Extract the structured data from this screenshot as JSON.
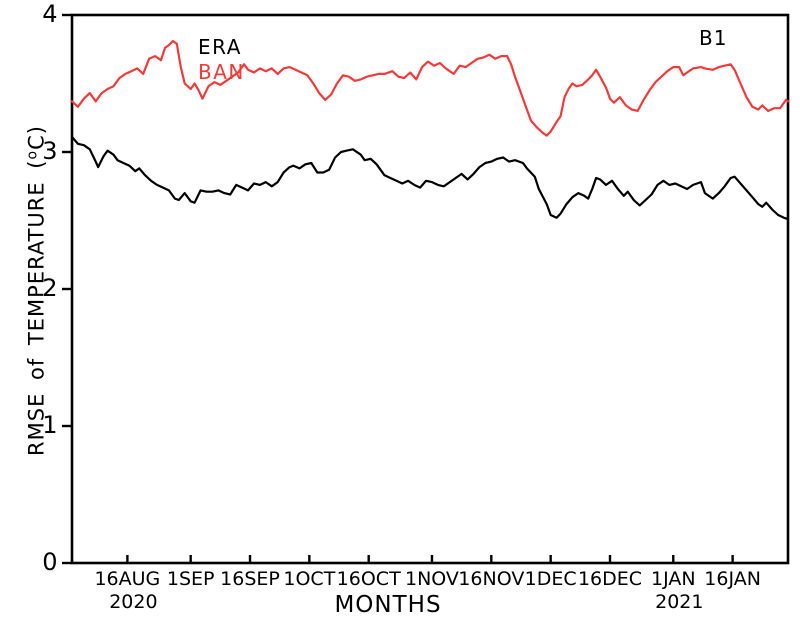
{
  "panel_label": "B1",
  "legend": {
    "era_label": "ERA",
    "ban_label": "BAN"
  },
  "colors": {
    "era_line": "#000000",
    "ban_line": "#f13a3a",
    "axis": "#000000",
    "background": "#ffffff"
  },
  "axes": {
    "x_title": "MONTHS",
    "y_title_prefix": "RMSE of TEMPERATURE (",
    "y_title_sup": "o",
    "y_title_suffix": "C)",
    "ylim": [
      0,
      4
    ],
    "yticks": [
      0,
      1,
      2,
      3,
      4
    ],
    "xlim_days": [
      1,
      182
    ],
    "xticks": [
      {
        "day": 15,
        "label": "16AUG",
        "sublabel": "2020"
      },
      {
        "day": 31,
        "label": "1SEP",
        "sublabel": ""
      },
      {
        "day": 46,
        "label": "16SEP",
        "sublabel": ""
      },
      {
        "day": 61,
        "label": "1OCT",
        "sublabel": ""
      },
      {
        "day": 76,
        "label": "16OCT",
        "sublabel": ""
      },
      {
        "day": 92,
        "label": "1NOV",
        "sublabel": ""
      },
      {
        "day": 107,
        "label": "16NOV",
        "sublabel": ""
      },
      {
        "day": 122,
        "label": "1DEC",
        "sublabel": ""
      },
      {
        "day": 137,
        "label": "16DEC",
        "sublabel": ""
      },
      {
        "day": 153,
        "label": "1JAN",
        "sublabel": "2021"
      },
      {
        "day": 168,
        "label": "16JAN",
        "sublabel": ""
      }
    ]
  },
  "chart_data": {
    "type": "line",
    "title": "",
    "xlabel": "MONTHS",
    "ylabel": "RMSE of TEMPERATURE (oC)",
    "x_units": "days since 1 Aug 2020 (day 1 = 2 Aug 2020)",
    "ylim": [
      0,
      4
    ],
    "grid": false,
    "legend_position": "top-left-inside",
    "series": [
      {
        "name": "ERA",
        "color_key": "era_line",
        "points": [
          [
            1,
            3.11
          ],
          [
            2.5,
            3.06
          ],
          [
            4,
            3.05
          ],
          [
            5.5,
            3.02
          ],
          [
            7,
            2.93
          ],
          [
            7.6,
            2.89
          ],
          [
            9,
            2.97
          ],
          [
            10,
            3.01
          ],
          [
            11.5,
            2.98
          ],
          [
            12.5,
            2.94
          ],
          [
            14,
            2.92
          ],
          [
            15.5,
            2.9
          ],
          [
            17,
            2.86
          ],
          [
            18,
            2.88
          ],
          [
            19.5,
            2.83
          ],
          [
            21,
            2.79
          ],
          [
            22.5,
            2.76
          ],
          [
            24,
            2.74
          ],
          [
            25.5,
            2.72
          ],
          [
            27,
            2.66
          ],
          [
            28,
            2.65
          ],
          [
            29.5,
            2.7
          ],
          [
            31,
            2.64
          ],
          [
            32,
            2.63
          ],
          [
            33.5,
            2.72
          ],
          [
            35,
            2.71
          ],
          [
            36.5,
            2.71
          ],
          [
            38,
            2.72
          ],
          [
            39.5,
            2.7
          ],
          [
            41,
            2.69
          ],
          [
            42.5,
            2.76
          ],
          [
            44,
            2.74
          ],
          [
            45.5,
            2.72
          ],
          [
            47,
            2.77
          ],
          [
            48.5,
            2.76
          ],
          [
            50,
            2.78
          ],
          [
            51.5,
            2.75
          ],
          [
            53,
            2.78
          ],
          [
            54.5,
            2.85
          ],
          [
            56,
            2.89
          ],
          [
            57,
            2.9
          ],
          [
            58.5,
            2.88
          ],
          [
            60,
            2.91
          ],
          [
            61.5,
            2.92
          ],
          [
            63,
            2.85
          ],
          [
            64.5,
            2.85
          ],
          [
            66,
            2.87
          ],
          [
            67.5,
            2.96
          ],
          [
            69,
            3.0
          ],
          [
            70.5,
            3.01
          ],
          [
            72,
            3.02
          ],
          [
            74,
            2.98
          ],
          [
            75,
            2.94
          ],
          [
            76.5,
            2.95
          ],
          [
            78,
            2.91
          ],
          [
            80,
            2.83
          ],
          [
            81.5,
            2.81
          ],
          [
            83,
            2.79
          ],
          [
            84.5,
            2.77
          ],
          [
            86,
            2.79
          ],
          [
            87.5,
            2.76
          ],
          [
            89,
            2.74
          ],
          [
            90.5,
            2.79
          ],
          [
            92,
            2.78
          ],
          [
            93.5,
            2.76
          ],
          [
            95,
            2.75
          ],
          [
            96.5,
            2.78
          ],
          [
            98,
            2.81
          ],
          [
            99.5,
            2.84
          ],
          [
            101,
            2.8
          ],
          [
            102.5,
            2.84
          ],
          [
            104,
            2.89
          ],
          [
            105.5,
            2.92
          ],
          [
            107,
            2.93
          ],
          [
            108.5,
            2.95
          ],
          [
            110,
            2.96
          ],
          [
            111.5,
            2.93
          ],
          [
            113,
            2.94
          ],
          [
            115,
            2.92
          ],
          [
            116,
            2.88
          ],
          [
            118,
            2.82
          ],
          [
            119,
            2.73
          ],
          [
            121,
            2.62
          ],
          [
            122,
            2.54
          ],
          [
            123.5,
            2.52
          ],
          [
            124.5,
            2.55
          ],
          [
            126,
            2.62
          ],
          [
            127.5,
            2.67
          ],
          [
            129,
            2.7
          ],
          [
            130.5,
            2.68
          ],
          [
            131.5,
            2.66
          ],
          [
            132.5,
            2.73
          ],
          [
            133.5,
            2.81
          ],
          [
            134.5,
            2.8
          ],
          [
            136,
            2.76
          ],
          [
            137.5,
            2.79
          ],
          [
            139,
            2.73
          ],
          [
            140.5,
            2.68
          ],
          [
            141.5,
            2.71
          ],
          [
            143,
            2.65
          ],
          [
            144.5,
            2.61
          ],
          [
            146,
            2.65
          ],
          [
            147.5,
            2.69
          ],
          [
            149,
            2.76
          ],
          [
            150.5,
            2.79
          ],
          [
            152,
            2.76
          ],
          [
            153.5,
            2.77
          ],
          [
            155,
            2.75
          ],
          [
            156.5,
            2.73
          ],
          [
            158,
            2.76
          ],
          [
            160,
            2.78
          ],
          [
            161,
            2.7
          ],
          [
            163,
            2.66
          ],
          [
            164.5,
            2.7
          ],
          [
            166,
            2.75
          ],
          [
            167.5,
            2.81
          ],
          [
            168.5,
            2.82
          ],
          [
            170,
            2.77
          ],
          [
            171.5,
            2.72
          ],
          [
            173,
            2.67
          ],
          [
            174.5,
            2.62
          ],
          [
            175.5,
            2.6
          ],
          [
            176.5,
            2.63
          ],
          [
            178,
            2.58
          ],
          [
            179.5,
            2.54
          ],
          [
            181,
            2.52
          ],
          [
            182,
            2.51
          ]
        ]
      },
      {
        "name": "BAN",
        "color_key": "ban_line",
        "points": [
          [
            1,
            3.37
          ],
          [
            2.5,
            3.33
          ],
          [
            4,
            3.39
          ],
          [
            5.5,
            3.43
          ],
          [
            7,
            3.37
          ],
          [
            8.5,
            3.43
          ],
          [
            10,
            3.46
          ],
          [
            11.5,
            3.48
          ],
          [
            13,
            3.54
          ],
          [
            14.5,
            3.57
          ],
          [
            16,
            3.59
          ],
          [
            17.5,
            3.61
          ],
          [
            19,
            3.57
          ],
          [
            20.5,
            3.68
          ],
          [
            22,
            3.7
          ],
          [
            23.5,
            3.67
          ],
          [
            24.5,
            3.76
          ],
          [
            25.5,
            3.78
          ],
          [
            26.5,
            3.81
          ],
          [
            27.5,
            3.79
          ],
          [
            28.5,
            3.62
          ],
          [
            29.5,
            3.5
          ],
          [
            31,
            3.46
          ],
          [
            32,
            3.5
          ],
          [
            33,
            3.45
          ],
          [
            34,
            3.39
          ],
          [
            35.5,
            3.48
          ],
          [
            37,
            3.51
          ],
          [
            38.5,
            3.49
          ],
          [
            40,
            3.52
          ],
          [
            41.5,
            3.55
          ],
          [
            43,
            3.58
          ],
          [
            44.5,
            3.64
          ],
          [
            45.5,
            3.6
          ],
          [
            47,
            3.58
          ],
          [
            48.5,
            3.61
          ],
          [
            50,
            3.59
          ],
          [
            51.5,
            3.61
          ],
          [
            53,
            3.57
          ],
          [
            54.5,
            3.61
          ],
          [
            56,
            3.62
          ],
          [
            57.5,
            3.6
          ],
          [
            59,
            3.58
          ],
          [
            60.5,
            3.56
          ],
          [
            62,
            3.5
          ],
          [
            63.5,
            3.43
          ],
          [
            65,
            3.38
          ],
          [
            66.5,
            3.42
          ],
          [
            68,
            3.5
          ],
          [
            69.5,
            3.56
          ],
          [
            71,
            3.55
          ],
          [
            72.5,
            3.52
          ],
          [
            74,
            3.53
          ],
          [
            75.5,
            3.55
          ],
          [
            77,
            3.56
          ],
          [
            78.5,
            3.57
          ],
          [
            80,
            3.57
          ],
          [
            82,
            3.59
          ],
          [
            83.5,
            3.55
          ],
          [
            85,
            3.54
          ],
          [
            86.5,
            3.58
          ],
          [
            88,
            3.53
          ],
          [
            89.5,
            3.62
          ],
          [
            91,
            3.66
          ],
          [
            92.5,
            3.63
          ],
          [
            94,
            3.65
          ],
          [
            95.5,
            3.61
          ],
          [
            96.5,
            3.59
          ],
          [
            97.5,
            3.57
          ],
          [
            99,
            3.63
          ],
          [
            100.5,
            3.62
          ],
          [
            102,
            3.65
          ],
          [
            103.5,
            3.68
          ],
          [
            105,
            3.69
          ],
          [
            106.5,
            3.71
          ],
          [
            108,
            3.68
          ],
          [
            109.5,
            3.7
          ],
          [
            111,
            3.7
          ],
          [
            112,
            3.64
          ],
          [
            113,
            3.55
          ],
          [
            114,
            3.47
          ],
          [
            115.5,
            3.35
          ],
          [
            117,
            3.23
          ],
          [
            118.5,
            3.18
          ],
          [
            120,
            3.14
          ],
          [
            121,
            3.12
          ],
          [
            122,
            3.15
          ],
          [
            123.5,
            3.22
          ],
          [
            124.5,
            3.26
          ],
          [
            125.5,
            3.4
          ],
          [
            126.5,
            3.46
          ],
          [
            127.5,
            3.5
          ],
          [
            128.5,
            3.48
          ],
          [
            130,
            3.49
          ],
          [
            131.5,
            3.53
          ],
          [
            132.5,
            3.56
          ],
          [
            133.5,
            3.6
          ],
          [
            134.5,
            3.55
          ],
          [
            136,
            3.47
          ],
          [
            137,
            3.39
          ],
          [
            138,
            3.36
          ],
          [
            139.5,
            3.4
          ],
          [
            141,
            3.34
          ],
          [
            142.5,
            3.31
          ],
          [
            144,
            3.3
          ],
          [
            145.5,
            3.38
          ],
          [
            147,
            3.45
          ],
          [
            148.5,
            3.51
          ],
          [
            150,
            3.55
          ],
          [
            151.5,
            3.59
          ],
          [
            153,
            3.62
          ],
          [
            154.5,
            3.62
          ],
          [
            155.5,
            3.56
          ],
          [
            156.5,
            3.58
          ],
          [
            158,
            3.61
          ],
          [
            160,
            3.62
          ],
          [
            161,
            3.61
          ],
          [
            163,
            3.6
          ],
          [
            164.5,
            3.62
          ],
          [
            166,
            3.63
          ],
          [
            167.5,
            3.64
          ],
          [
            168.5,
            3.6
          ],
          [
            170,
            3.5
          ],
          [
            171.5,
            3.4
          ],
          [
            173,
            3.33
          ],
          [
            174.5,
            3.31
          ],
          [
            175.5,
            3.34
          ],
          [
            177,
            3.3
          ],
          [
            178.5,
            3.32
          ],
          [
            180,
            3.32
          ],
          [
            181.5,
            3.38
          ],
          [
            182,
            3.37
          ]
        ]
      }
    ]
  }
}
